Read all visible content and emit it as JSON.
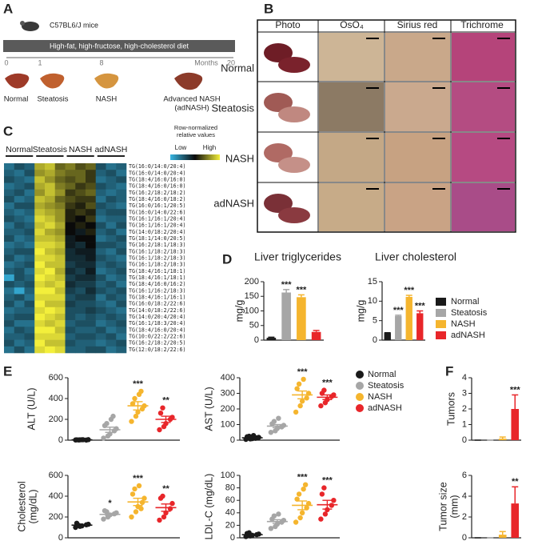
{
  "panels": [
    "A",
    "B",
    "C",
    "D",
    "E",
    "F"
  ],
  "timeline": {
    "mouse": "C57BL6/J mice",
    "diet": "High-fat, high-fructose, high-cholesterol diet",
    "ticks": [
      "0",
      "1",
      "8",
      "20"
    ],
    "unit": "Months",
    "stages": [
      "Normal",
      "Steatosis",
      "NASH",
      "Advanced NASH",
      "(adNASH)"
    ]
  },
  "histology": {
    "columns": [
      "Photo",
      "OsO₄",
      "Sirius red",
      "Trichrome"
    ],
    "rows": [
      "Normal",
      "Steatosis",
      "NASH",
      "adNASH"
    ]
  },
  "groups": {
    "names": [
      "Normal",
      "Steatosis",
      "NASH",
      "adNASH"
    ],
    "colors": [
      "#1a1a1a",
      "#a6a6a6",
      "#f5b52e",
      "#e8262a"
    ]
  },
  "chart_data": [
    {
      "type": "heatmap",
      "legend_title": [
        "Row-normalized",
        "relative values"
      ],
      "low": "Low",
      "high": "High",
      "colormap": [
        "#38b6e3",
        "#0a0a0a",
        "#f3ef3b"
      ],
      "column_groups": [
        "Normal",
        "Steatosis",
        "NASH",
        "adNASH"
      ],
      "rows": [
        "TG(16:0/14:0/20:4)",
        "TG(16:0/14:0/20:4)",
        "TG(18:4/16:0/16:0)",
        "TG(18:4/16:0/16:0)",
        "TG(16:2/18:2/18:2)",
        "TG(18:4/16:0/18:2)",
        "TG(16:0/16:1/20:5)",
        "TG(16:0/14:0/22:6)",
        "TG(16:1/16:1/20:4)",
        "TG(16:1/16:1/20:4)",
        "TG(14:0/18:2/20:4)",
        "TG(18:1/14:0/20:5)",
        "TG(16:2/18:1/18:3)",
        "TG(16:1/18:2/18:3)",
        "TG(16:1/18:2/18:3)",
        "TG(16:1/18:2/18:3)",
        "TG(18:4/16:1/18:1)",
        "TG(18:4/16:1/18:1)",
        "TG(18:4/16:0/16:2)",
        "TG(16:1/16:2/18:3)",
        "TG(18:4/16:1/16:1)",
        "TG(16:0/18:2/22:6)",
        "TG(14:0/18:2/22:6)",
        "TG(14:0/20:4/20:4)",
        "TG(16:1/18:3/20:4)",
        "TG(18:4/16:0/20:4)",
        "TG(10:0/22:2/22:6)",
        "TG(16:2/18:2/20:5)",
        "TG(12:0/18:2/22:6)"
      ],
      "values": [
        [
          0.2,
          0.3,
          0.25,
          0.85,
          0.9,
          0.7,
          0.75,
          0.65,
          0.7,
          0.3,
          0.2,
          0.25
        ],
        [
          0.25,
          0.2,
          0.3,
          0.8,
          0.85,
          0.75,
          0.7,
          0.7,
          0.6,
          0.25,
          0.3,
          0.2
        ],
        [
          0.3,
          0.25,
          0.2,
          0.9,
          0.8,
          0.7,
          0.65,
          0.7,
          0.6,
          0.2,
          0.25,
          0.3
        ],
        [
          0.2,
          0.25,
          0.3,
          0.85,
          0.9,
          0.75,
          0.7,
          0.6,
          0.65,
          0.3,
          0.25,
          0.2
        ],
        [
          0.25,
          0.3,
          0.2,
          0.8,
          0.9,
          0.8,
          0.6,
          0.65,
          0.7,
          0.25,
          0.2,
          0.25
        ],
        [
          0.3,
          0.2,
          0.25,
          0.9,
          0.85,
          0.7,
          0.65,
          0.6,
          0.6,
          0.2,
          0.3,
          0.25
        ],
        [
          0.2,
          0.3,
          0.3,
          0.85,
          0.8,
          0.75,
          0.6,
          0.55,
          0.65,
          0.3,
          0.25,
          0.2
        ],
        [
          0.25,
          0.2,
          0.25,
          0.9,
          0.85,
          0.8,
          0.55,
          0.6,
          0.55,
          0.25,
          0.3,
          0.3
        ],
        [
          0.3,
          0.25,
          0.2,
          0.95,
          0.9,
          0.8,
          0.55,
          0.5,
          0.6,
          0.2,
          0.25,
          0.25
        ],
        [
          0.2,
          0.3,
          0.25,
          0.9,
          0.95,
          0.85,
          0.5,
          0.55,
          0.5,
          0.3,
          0.2,
          0.3
        ],
        [
          0.25,
          0.25,
          0.3,
          0.95,
          0.85,
          0.8,
          0.5,
          0.45,
          0.55,
          0.25,
          0.3,
          0.2
        ],
        [
          0.3,
          0.2,
          0.25,
          0.9,
          0.9,
          0.85,
          0.45,
          0.5,
          0.5,
          0.2,
          0.25,
          0.3
        ],
        [
          0.2,
          0.25,
          0.2,
          0.95,
          0.95,
          0.9,
          0.45,
          0.4,
          0.5,
          0.3,
          0.3,
          0.25
        ],
        [
          0.25,
          0.3,
          0.3,
          1.0,
          0.9,
          0.85,
          0.4,
          0.45,
          0.45,
          0.25,
          0.2,
          0.3
        ],
        [
          0.3,
          0.2,
          0.25,
          0.95,
          0.95,
          0.9,
          0.4,
          0.4,
          0.45,
          0.3,
          0.25,
          0.2
        ],
        [
          0.2,
          0.25,
          0.3,
          1.0,
          0.9,
          0.9,
          0.35,
          0.4,
          0.4,
          0.25,
          0.3,
          0.25
        ],
        [
          0.25,
          0.3,
          0.2,
          0.95,
          1.0,
          0.85,
          0.4,
          0.35,
          0.45,
          0.2,
          0.25,
          0.3
        ],
        [
          0.05,
          0.3,
          0.25,
          1.0,
          0.95,
          0.9,
          0.35,
          0.4,
          0.4,
          0.3,
          0.2,
          0.25
        ],
        [
          0.3,
          0.25,
          0.3,
          0.95,
          0.9,
          0.95,
          0.4,
          0.35,
          0.35,
          0.25,
          0.3,
          0.2
        ],
        [
          0.2,
          0.05,
          0.25,
          1.0,
          1.0,
          0.9,
          0.35,
          0.3,
          0.4,
          0.3,
          0.25,
          0.3
        ],
        [
          0.25,
          0.3,
          0.2,
          0.95,
          0.95,
          0.95,
          0.3,
          0.35,
          0.35,
          0.2,
          0.3,
          0.25
        ],
        [
          0.3,
          0.2,
          0.3,
          1.0,
          0.9,
          0.9,
          0.35,
          0.3,
          0.3,
          0.25,
          0.2,
          0.3
        ],
        [
          0.2,
          0.25,
          0.25,
          0.95,
          1.0,
          0.95,
          0.3,
          0.3,
          0.35,
          0.3,
          0.25,
          0.2
        ],
        [
          0.25,
          0.3,
          0.3,
          1.0,
          0.95,
          0.9,
          0.3,
          0.25,
          0.3,
          0.25,
          0.3,
          0.25
        ],
        [
          0.3,
          0.2,
          0.2,
          0.95,
          0.9,
          0.95,
          0.25,
          0.3,
          0.3,
          0.2,
          0.25,
          0.3
        ],
        [
          0.2,
          0.3,
          0.25,
          1.0,
          1.0,
          0.9,
          0.3,
          0.25,
          0.25,
          0.3,
          0.2,
          0.25
        ],
        [
          0.25,
          0.25,
          0.3,
          0.95,
          0.95,
          0.95,
          0.25,
          0.3,
          0.3,
          0.25,
          0.3,
          0.2
        ],
        [
          0.3,
          0.2,
          0.25,
          1.0,
          0.9,
          0.9,
          0.3,
          0.25,
          0.25,
          0.2,
          0.25,
          0.3
        ],
        [
          0.2,
          0.3,
          0.2,
          0.95,
          1.0,
          0.95,
          0.25,
          0.25,
          0.3,
          0.3,
          0.2,
          0.25
        ]
      ]
    },
    {
      "type": "bar",
      "title": "Liver triglycerides",
      "ylabel": "mg/g",
      "ylim": [
        0,
        200
      ],
      "yticks": [
        0,
        50,
        100,
        150,
        200
      ],
      "values": [
        8,
        163,
        147,
        28
      ],
      "errors": [
        2,
        10,
        8,
        5
      ],
      "annotations": [
        null,
        "***",
        "***",
        null
      ]
    },
    {
      "type": "bar",
      "title": "Liver cholesterol",
      "ylabel": "mg/g",
      "ylim": [
        0,
        15
      ],
      "yticks": [
        0,
        5,
        10,
        15
      ],
      "values": [
        1.8,
        6.2,
        11.1,
        6.9
      ],
      "errors": [
        0.1,
        0.2,
        0.4,
        0.6
      ],
      "annotations": [
        null,
        "***",
        "***",
        "***"
      ]
    },
    {
      "type": "dot",
      "ylabel": "ALT (U/L)",
      "ylim": [
        0,
        600
      ],
      "yticks": [
        0,
        200,
        400,
        600
      ],
      "series": [
        {
          "values": [
            2,
            3,
            4,
            1,
            5,
            3,
            2,
            4
          ],
          "mean": 3,
          "sem": 1
        },
        {
          "values": [
            20,
            40,
            60,
            90,
            110,
            140,
            160,
            200,
            230
          ],
          "mean": 100,
          "sem": 25
        },
        {
          "values": [
            180,
            230,
            270,
            300,
            330,
            350,
            400,
            440,
            470
          ],
          "mean": 330,
          "sem": 40
        },
        {
          "values": [
            100,
            130,
            160,
            200,
            220,
            260,
            310
          ],
          "mean": 200,
          "sem": 30
        }
      ],
      "annotations": [
        null,
        null,
        "***",
        "**"
      ]
    },
    {
      "type": "dot",
      "ylabel": "AST (U/L)",
      "ylim": [
        0,
        400
      ],
      "yticks": [
        0,
        100,
        200,
        300,
        400
      ],
      "series": [
        {
          "values": [
            5,
            8,
            10,
            15,
            18,
            22,
            25,
            30,
            12
          ],
          "mean": 15,
          "sem": 3
        },
        {
          "values": [
            50,
            60,
            75,
            85,
            95,
            105,
            120,
            140
          ],
          "mean": 90,
          "sem": 10
        },
        {
          "values": [
            180,
            220,
            250,
            270,
            300,
            330,
            360,
            390
          ],
          "mean": 290,
          "sem": 25
        },
        {
          "values": [
            220,
            240,
            260,
            280,
            290,
            300,
            320
          ],
          "mean": 275,
          "sem": 15
        }
      ],
      "annotations": [
        null,
        null,
        "***",
        "***"
      ]
    },
    {
      "type": "dot",
      "ylabel": [
        "Cholesterol",
        "(mg/dL)"
      ],
      "ylim": [
        0,
        600
      ],
      "yticks": [
        0,
        200,
        400,
        600
      ],
      "series": [
        {
          "values": [
            100,
            110,
            115,
            125,
            130,
            140,
            120
          ],
          "mean": 122,
          "sem": 5
        },
        {
          "values": [
            180,
            200,
            220,
            230,
            240,
            260,
            250
          ],
          "mean": 225,
          "sem": 10
        },
        {
          "values": [
            200,
            250,
            300,
            340,
            380,
            420,
            470,
            500,
            280
          ],
          "mean": 345,
          "sem": 35
        },
        {
          "values": [
            170,
            200,
            240,
            280,
            330,
            380,
            400
          ],
          "mean": 290,
          "sem": 35
        }
      ],
      "annotations": [
        null,
        "*",
        "***",
        "**"
      ]
    },
    {
      "type": "dot",
      "ylabel": "LDL-C (mg/dL)",
      "ylim": [
        0,
        100
      ],
      "yticks": [
        0,
        20,
        40,
        60,
        80,
        100
      ],
      "series": [
        {
          "values": [
            2,
            3,
            4,
            5,
            6,
            7,
            8
          ],
          "mean": 5,
          "sem": 1
        },
        {
          "values": [
            15,
            18,
            22,
            25,
            28,
            30,
            35,
            38
          ],
          "mean": 26,
          "sem": 3
        },
        {
          "values": [
            25,
            32,
            40,
            48,
            55,
            62,
            70,
            78,
            85
          ],
          "mean": 52,
          "sem": 7
        },
        {
          "values": [
            30,
            38,
            45,
            52,
            60,
            70,
            80
          ],
          "mean": 53,
          "sem": 7
        }
      ],
      "annotations": [
        null,
        null,
        "***",
        "***"
      ]
    },
    {
      "type": "bar",
      "ylabel": "Tumors",
      "ylim": [
        0,
        4
      ],
      "yticks": [
        0,
        1,
        2,
        3,
        4
      ],
      "values": [
        0,
        0,
        0.1,
        2.0
      ],
      "errors": [
        0,
        0,
        0.1,
        0.9
      ],
      "annotations": [
        null,
        null,
        null,
        "***"
      ]
    },
    {
      "type": "bar",
      "ylabel": [
        "Tumor size",
        "(mm)"
      ],
      "ylim": [
        0,
        6
      ],
      "yticks": [
        0,
        2,
        4,
        6
      ],
      "values": [
        0,
        0,
        0.3,
        3.3
      ],
      "errors": [
        0,
        0,
        0.3,
        1.6
      ],
      "annotations": [
        null,
        null,
        null,
        "**"
      ]
    }
  ]
}
